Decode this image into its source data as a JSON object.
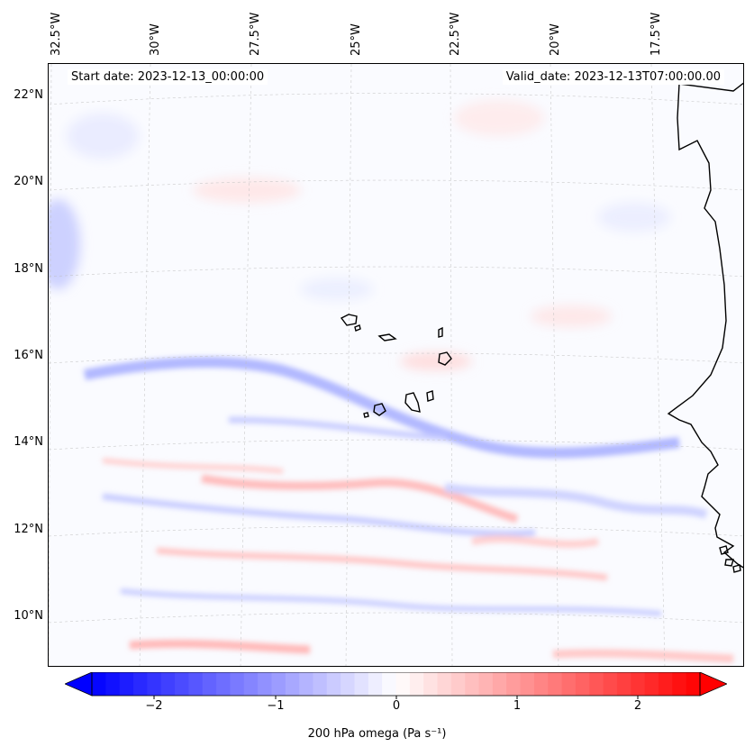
{
  "map": {
    "start_date": "Start date: 2023-12-13_00:00:00",
    "valid_date": "Valid_date: 2023-12-13T07:00:00.00",
    "lon_labels": [
      "32.5°W",
      "30°W",
      "27.5°W",
      "25°W",
      "22.5°W",
      "20°W",
      "17.5°W"
    ],
    "lat_labels": [
      "22°N",
      "20°N",
      "18°N",
      "16°N",
      "14°N",
      "12°N",
      "10°N"
    ],
    "colors": {
      "negative": "#0000ff",
      "positive": "#ff0000",
      "neutral": "#ffffff",
      "coast": "#000000"
    }
  },
  "colorbar": {
    "label": "200 hPa omega (Pa s⁻¹)",
    "ticks": [
      "−2",
      "−1",
      "0",
      "1",
      "2"
    ],
    "range": [
      -2.75,
      2.75
    ]
  }
}
